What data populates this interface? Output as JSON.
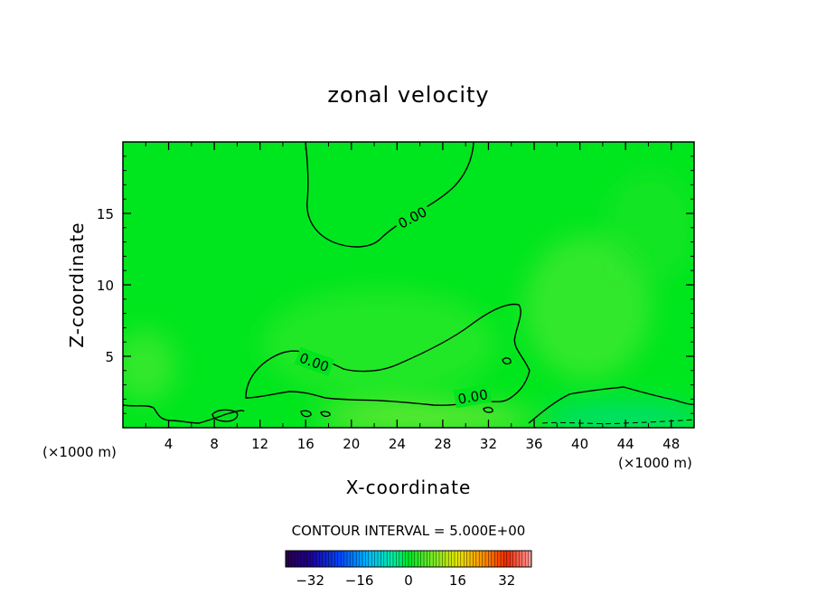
{
  "chart_data": {
    "type": "heatmap",
    "title": "zonal velocity",
    "xlabel": "X-coordinate",
    "ylabel": "Z-coordinate",
    "x_unit_left": "(×1000 m)",
    "x_unit_right": "(×1000 m)",
    "xlim": [
      0,
      50
    ],
    "ylim": [
      0,
      20
    ],
    "x_ticks": [
      4,
      8,
      12,
      16,
      20,
      24,
      28,
      32,
      36,
      40,
      44,
      48
    ],
    "y_ticks": [
      5,
      10,
      15
    ],
    "contour_labels": [
      "0.00",
      "0.00",
      "0.00"
    ],
    "contour_interval_text": "CONTOUR INTERVAL = 5.000E+00",
    "colorbar": {
      "min": -40,
      "max": 40,
      "tick_values": [
        -32,
        -16,
        0,
        16,
        32
      ],
      "tick_labels": [
        "−32",
        "−16",
        "0",
        "16",
        "32"
      ]
    },
    "field_note": "near-zero velocity (green) over most of the domain; weak positive (yellow-green) near surface x~18-36; weak negative (cyan) near surface x~36-50"
  },
  "colors": {
    "field_base": "#00e61e",
    "positive_weak": "#5ee63a",
    "negative_weak": "#00e07a",
    "contour": "#000000"
  }
}
